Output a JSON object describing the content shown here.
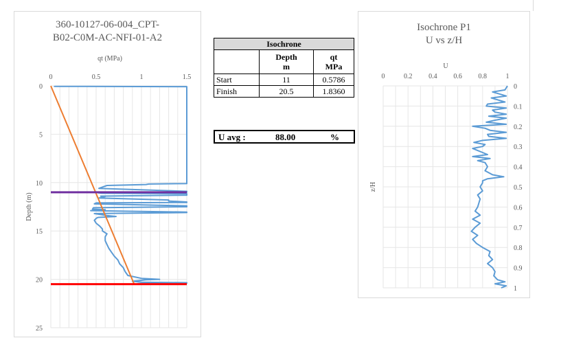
{
  "left_chart": {
    "title_line1": "360-10127-06-004_CPT-",
    "title_line2": "B02-C0M-AC-NFI-01-A2",
    "xlabel": "qt (MPa)",
    "ylabel": "Depth (m)",
    "xticks": [
      "0",
      "0.5",
      "1",
      "1.5"
    ],
    "yticks": [
      "0",
      "5",
      "10",
      "15",
      "20",
      "25"
    ]
  },
  "table": {
    "title": "Isochrone",
    "col_depth_line1": "Depth",
    "col_depth_line2": "m",
    "col_qt_line1": "qt",
    "col_qt_line2": "MPa",
    "rows": [
      {
        "label": "Start",
        "depth": "11",
        "qt": "0.5786"
      },
      {
        "label": "Finish",
        "depth": "20.5",
        "qt": "1.8360"
      }
    ]
  },
  "uavg": {
    "label": "U avg :",
    "value": "88.00",
    "unit": "%"
  },
  "right_chart": {
    "title_line1": "Isochrone P1",
    "title_line2": "U vs z/H",
    "xlabel": "U",
    "ylabel": "z/H",
    "xticks": [
      "0",
      "0.2",
      "0.4",
      "0.6",
      "0.8",
      "1"
    ],
    "yticks": [
      "0",
      "0.1",
      "0.2",
      "0.3",
      "0.4",
      "0.5",
      "0.6",
      "0.7",
      "0.8",
      "0.9",
      "1"
    ]
  },
  "chart_data": [
    {
      "type": "line",
      "title": "360-10127-06-004_CPT-B02-C0M-AC-NFI-01-A2",
      "xlabel": "qt (MPa)",
      "ylabel": "Depth (m)",
      "xlim": [
        0,
        1.5
      ],
      "ylim": [
        25,
        0
      ],
      "x_axis_position": "top",
      "grid": true,
      "series": [
        {
          "color": "#5b9bd5",
          "depth": [
            0,
            0.05,
            0.08,
            9.8,
            10.1,
            10.15,
            10.2,
            10.3,
            10.6,
            10.9,
            11.0,
            11.05,
            11.1,
            11.15,
            11.3,
            11.4,
            11.45,
            11.6,
            11.8,
            11.9,
            12.0,
            12.05,
            12.1,
            12.2,
            12.4,
            12.5,
            12.6,
            12.75,
            12.8,
            12.9,
            13.05,
            13.1,
            13.2,
            13.4,
            13.5,
            13.6,
            13.7,
            13.9,
            14.2,
            14.5,
            14.8,
            15.0,
            15.3,
            15.6,
            16.0,
            16.4,
            16.8,
            17.2,
            17.6,
            18.0,
            18.4,
            18.8,
            19.2,
            19.6,
            19.9,
            20.0,
            20.05,
            20.1,
            20.2,
            20.3,
            20.35,
            20.4,
            20.45,
            20.5
          ],
          "qt": [
            0.04,
            0.04,
            1.5,
            1.5,
            1.5,
            1.08,
            1.05,
            0.62,
            0.53,
            1.5,
            1.5,
            0.52,
            0.56,
            1.5,
            1.5,
            0.55,
            0.6,
            0.53,
            1.3,
            1.3,
            1.5,
            1.5,
            0.5,
            0.48,
            1.5,
            1.5,
            0.47,
            0.46,
            0.6,
            0.44,
            1.5,
            1.5,
            0.48,
            0.62,
            0.72,
            0.52,
            0.5,
            0.48,
            0.5,
            0.54,
            0.57,
            0.57,
            0.62,
            0.6,
            0.6,
            0.62,
            0.64,
            0.67,
            0.7,
            0.74,
            0.76,
            0.8,
            0.82,
            0.85,
            1.0,
            1.2,
            1.05,
            1.0,
            0.9,
            1.0,
            1.5,
            1.5,
            0.96,
            0.96
          ]
        },
        {
          "color": "#ed7d31",
          "depth": [
            0,
            20.5
          ],
          "qt": [
            0,
            0.92
          ]
        },
        {
          "color": "#7030a0",
          "depth": [
            11,
            11
          ],
          "qt": [
            0,
            1.5
          ]
        },
        {
          "color": "#ff0000",
          "depth": [
            20.5,
            20.5
          ],
          "qt": [
            0,
            1.5
          ]
        }
      ]
    },
    {
      "type": "line",
      "title": "Isochrone P1 U vs z/H",
      "xlabel": "U",
      "ylabel": "z/H",
      "xlim": [
        0,
        1
      ],
      "ylim": [
        1,
        0
      ],
      "x_axis_position": "top",
      "y_axis_position": "right",
      "grid": true,
      "series": [
        {
          "color": "#5b9bd5",
          "zH": [
            0.0,
            0.02,
            0.03,
            0.05,
            0.06,
            0.08,
            0.09,
            0.1,
            0.11,
            0.12,
            0.13,
            0.14,
            0.15,
            0.16,
            0.17,
            0.18,
            0.19,
            0.2,
            0.21,
            0.22,
            0.23,
            0.24,
            0.25,
            0.26,
            0.27,
            0.28,
            0.29,
            0.3,
            0.31,
            0.32,
            0.33,
            0.34,
            0.35,
            0.36,
            0.37,
            0.38,
            0.4,
            0.42,
            0.44,
            0.45,
            0.46,
            0.47,
            0.48,
            0.5,
            0.52,
            0.54,
            0.56,
            0.58,
            0.6,
            0.62,
            0.64,
            0.66,
            0.68,
            0.7,
            0.72,
            0.74,
            0.76,
            0.78,
            0.8,
            0.82,
            0.84,
            0.86,
            0.88,
            0.9,
            0.92,
            0.94,
            0.96,
            0.97,
            0.98,
            0.99,
            1.0
          ],
          "U": [
            1.0,
            0.98,
            0.88,
            0.99,
            0.87,
            0.98,
            0.84,
            0.83,
            0.99,
            0.88,
            0.9,
            0.99,
            0.85,
            0.99,
            0.9,
            0.83,
            0.99,
            0.72,
            0.82,
            0.86,
            0.99,
            0.84,
            0.85,
            0.99,
            0.8,
            0.73,
            0.82,
            0.8,
            0.72,
            0.76,
            0.8,
            0.84,
            0.72,
            0.86,
            0.76,
            0.82,
            0.84,
            0.82,
            0.88,
            0.97,
            0.84,
            0.8,
            0.8,
            0.78,
            0.8,
            0.76,
            0.78,
            0.77,
            0.76,
            0.74,
            0.78,
            0.72,
            0.78,
            0.74,
            0.71,
            0.76,
            0.72,
            0.75,
            0.8,
            0.86,
            0.85,
            0.88,
            0.84,
            0.88,
            0.9,
            0.89,
            0.92,
            0.98,
            0.9,
            0.99,
            0.95
          ]
        }
      ]
    }
  ]
}
